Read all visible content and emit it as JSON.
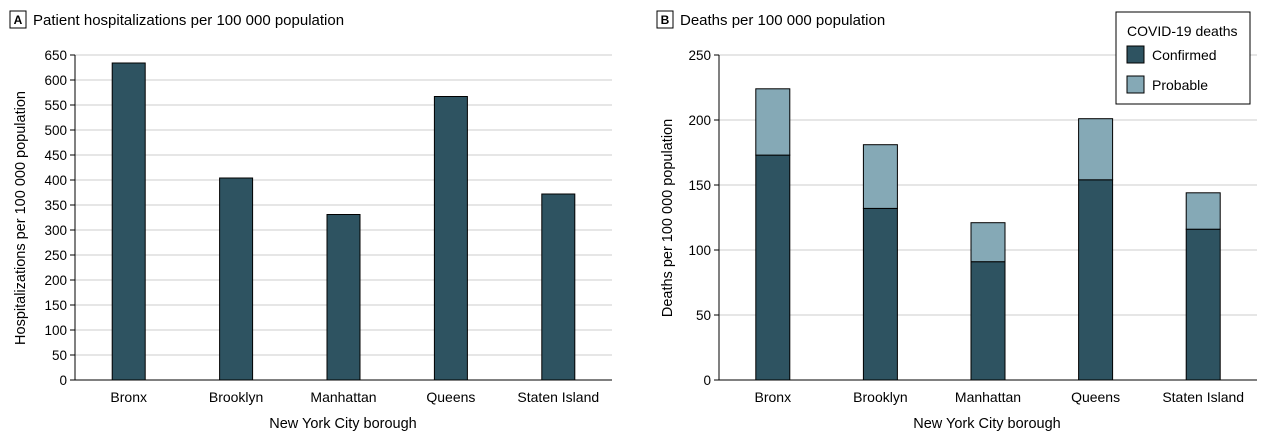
{
  "colors": {
    "confirmed": "#2e5361",
    "probable": "#85a9b6",
    "grid": "#cccccc",
    "axis": "#000000"
  },
  "chart_data": [
    {
      "panel": "A",
      "type": "bar",
      "title": "Patient hospitalizations per 100 000 population",
      "xlabel": "New York City borough",
      "ylabel": "Hospitalizations per 100 000 population",
      "categories": [
        "Bronx",
        "Brooklyn",
        "Manhattan",
        "Queens",
        "Staten Island"
      ],
      "series": [
        {
          "values": [
            634,
            404,
            331,
            567,
            372
          ]
        }
      ],
      "ylim": [
        0,
        650
      ],
      "yticks": [
        0,
        50,
        100,
        150,
        200,
        250,
        300,
        350,
        400,
        450,
        500,
        550,
        600,
        650
      ],
      "grid": true
    },
    {
      "panel": "B",
      "type": "bar",
      "stacked": true,
      "title": "Deaths per 100 000 population",
      "xlabel": "New York City borough",
      "ylabel": "Deaths per 100 000 population",
      "categories": [
        "Bronx",
        "Brooklyn",
        "Manhattan",
        "Queens",
        "Staten Island"
      ],
      "legend_title": "COVID-19 deaths",
      "legend_position": "top-right",
      "series": [
        {
          "name": "Confirmed",
          "values": [
            173,
            132,
            91,
            154,
            116
          ]
        },
        {
          "name": "Probable",
          "values": [
            51,
            49,
            30,
            47,
            28
          ]
        }
      ],
      "ylim": [
        0,
        250
      ],
      "yticks": [
        0,
        50,
        100,
        150,
        200,
        250
      ],
      "grid": true
    }
  ]
}
